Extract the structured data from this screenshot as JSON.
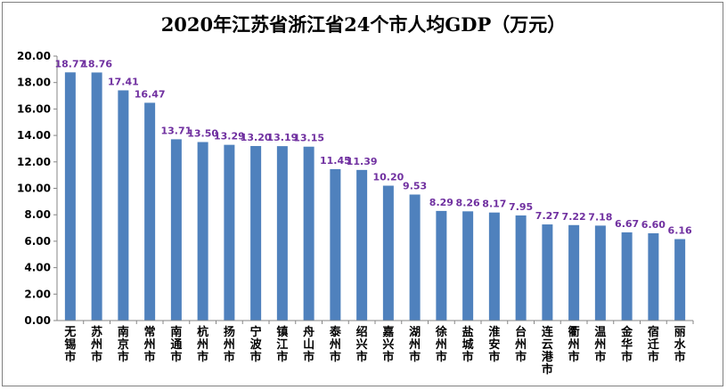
{
  "chart_data": {
    "type": "bar",
    "title": "2020年江苏省浙江省24个市人均GDP（万元）",
    "xlabel": "",
    "ylabel": "",
    "ylim": [
      0,
      20
    ],
    "yticks": [
      "0.00",
      "2.00",
      "4.00",
      "6.00",
      "8.00",
      "10.00",
      "12.00",
      "14.00",
      "16.00",
      "18.00",
      "20.00"
    ],
    "grid": false,
    "legend": "none",
    "bar_color": "#4f81bd",
    "label_color": "#7030a0",
    "categories": [
      "无锡市",
      "苏州市",
      "南京市",
      "常州市",
      "南通市",
      "杭州市",
      "扬州市",
      "宁波市",
      "镇江市",
      "舟山市",
      "泰州市",
      "绍兴市",
      "嘉兴市",
      "湖州市",
      "徐州市",
      "盐城市",
      "淮安市",
      "台州市",
      "连云港市",
      "衢州市",
      "温州市",
      "金华市",
      "宿迁市",
      "丽水市"
    ],
    "values": [
      18.77,
      18.76,
      17.41,
      16.47,
      13.71,
      13.5,
      13.29,
      13.2,
      13.19,
      13.15,
      11.45,
      11.39,
      10.2,
      9.53,
      8.29,
      8.26,
      8.17,
      7.95,
      7.27,
      7.22,
      7.18,
      6.67,
      6.6,
      6.16
    ],
    "value_labels": [
      "18.77",
      "18.76",
      "17.41",
      "16.47",
      "13.71",
      "13.50",
      "13.29",
      "13.20",
      "13.19",
      "13.15",
      "11.45",
      "11.39",
      "10.20",
      "9.53",
      "8.29",
      "8.26",
      "8.17",
      "7.95",
      "7.27",
      "7.22",
      "7.18",
      "6.67",
      "6.60",
      "6.16"
    ]
  }
}
